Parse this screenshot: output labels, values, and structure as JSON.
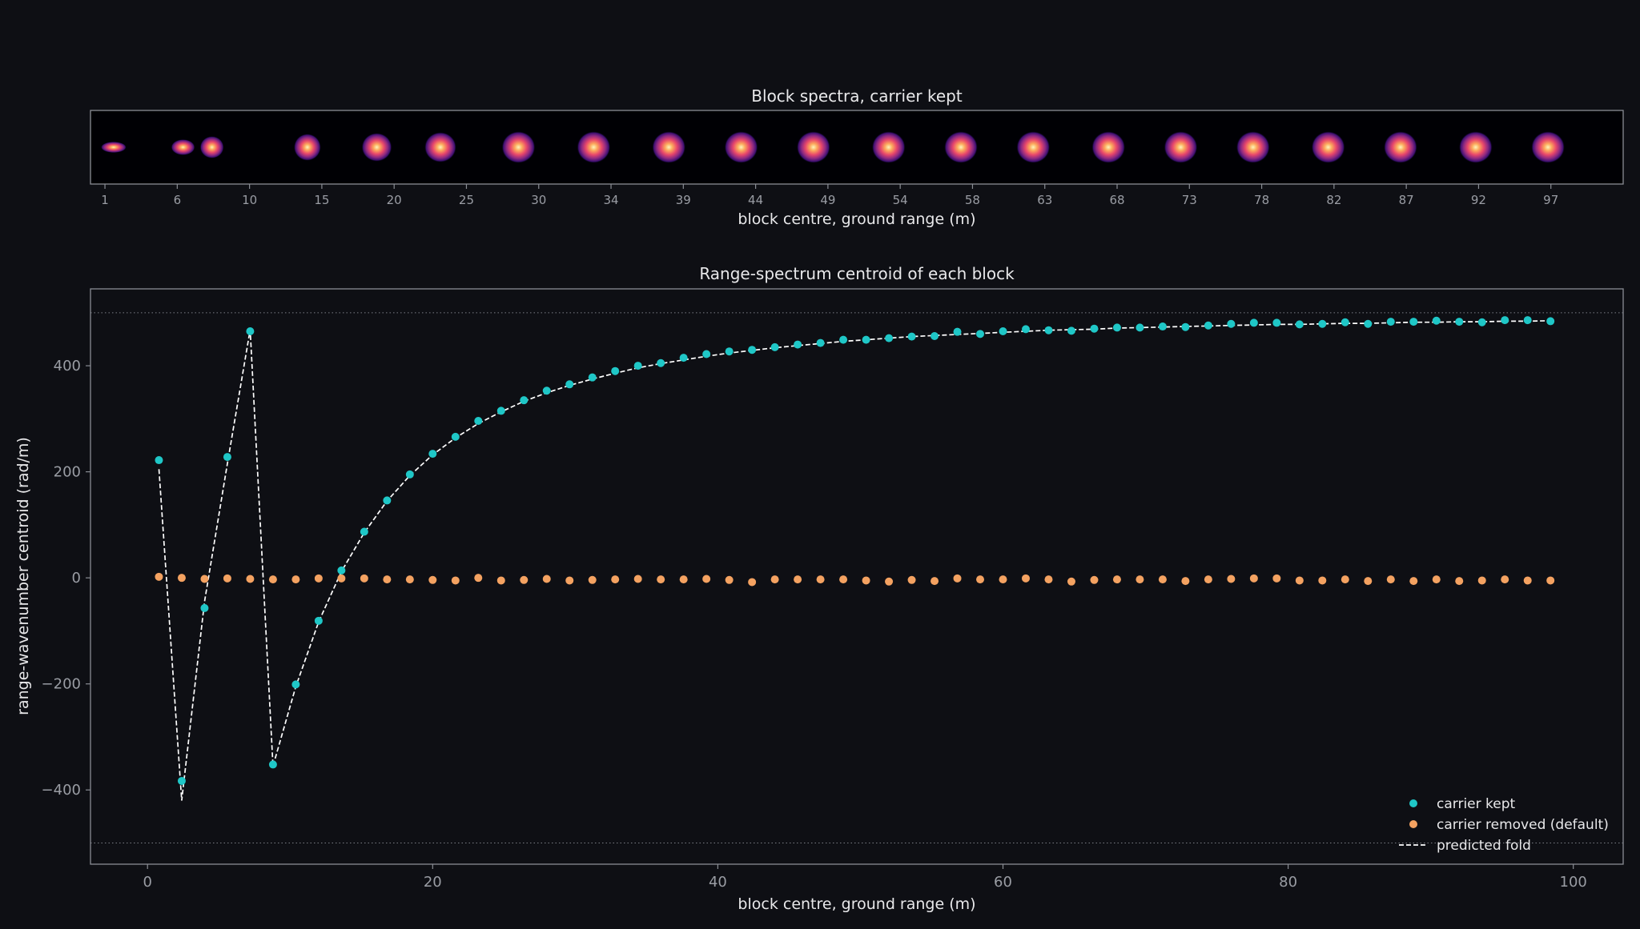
{
  "colors": {
    "background": "#0e0f14",
    "axes_frame": "#8a8d94",
    "tick_label": "#9a9da4",
    "text": "#e8e8ea",
    "carrier_kept": "#1fc7c7",
    "carrier_removed": "#f4a261",
    "predicted_fold": "#ffffff",
    "limit_line": "#7c7f86"
  },
  "chart_data": [
    {
      "type": "heatmap",
      "title": "Block spectra, carrier kept",
      "xlabel": "block centre, ground range (m)",
      "ylabel": "",
      "tick_labels": [
        "1",
        "6",
        "10",
        "15",
        "20",
        "25",
        "30",
        "34",
        "39",
        "44",
        "49",
        "54",
        "58",
        "63",
        "68",
        "73",
        "78",
        "82",
        "87",
        "92",
        "97"
      ],
      "colormap": "magma",
      "blob_columns": [
        0.3,
        2.7,
        3.7,
        7.0,
        9.4,
        11.6,
        14.3,
        16.9,
        19.5,
        22.0,
        24.5,
        27.1,
        29.6,
        32.1,
        34.7,
        37.2,
        39.7,
        42.3,
        44.8,
        47.4,
        49.9
      ],
      "num_columns": 53
    },
    {
      "type": "scatter",
      "title": "Range-spectrum centroid of each block",
      "xlabel": "block centre, ground range (m)",
      "ylabel": "range-wavenumber centroid (rad/m)",
      "xlim": [
        -4,
        103.5
      ],
      "ylim": [
        -540,
        545
      ],
      "xticks": [
        0,
        20,
        40,
        60,
        80,
        100
      ],
      "yticks": [
        -400,
        -200,
        0,
        200,
        400
      ],
      "ytick_labels": [
        "−400",
        "−200",
        "0",
        "200",
        "400"
      ],
      "grid": false,
      "legend_position": "bottom-right",
      "reference_lines": [
        500,
        -500
      ],
      "x": [
        0.8,
        2.4,
        4.0,
        5.6,
        7.2,
        8.8,
        10.4,
        12.0,
        13.6,
        15.2,
        16.8,
        18.4,
        20.0,
        21.6,
        23.2,
        24.8,
        26.4,
        28.0,
        29.6,
        31.2,
        32.8,
        34.4,
        36.0,
        37.6,
        39.2,
        40.8,
        42.4,
        44.0,
        45.6,
        47.2,
        48.8,
        50.4,
        52.0,
        53.6,
        55.2,
        56.8,
        58.4,
        60.0,
        61.6,
        63.2,
        64.8,
        66.4,
        68.0,
        69.6,
        71.2,
        72.8,
        74.4,
        76.0,
        77.6,
        79.2,
        80.8,
        82.4,
        84.0,
        85.6,
        87.2,
        88.8,
        90.4,
        92.0,
        93.6,
        95.2,
        96.8,
        98.4
      ],
      "series": [
        {
          "name": "carrier kept",
          "marker": "dot",
          "values": [
            222,
            -383,
            -57,
            228,
            465,
            -352,
            -201,
            -81,
            14,
            87,
            146,
            195,
            234,
            266,
            296,
            315,
            335,
            353,
            365,
            378,
            390,
            400,
            405,
            415,
            422,
            427,
            430,
            435,
            440,
            443,
            449,
            449,
            452,
            455,
            456,
            464,
            460,
            465,
            469,
            467,
            466,
            470,
            472,
            472,
            474,
            473,
            476,
            479,
            481,
            481,
            478,
            479,
            482,
            479,
            483,
            483,
            485,
            483,
            482,
            486,
            486,
            484
          ]
        },
        {
          "name": "carrier removed (default)",
          "marker": "dot",
          "values": [
            2,
            0,
            -2,
            -1,
            -2,
            -3,
            -3,
            -1,
            -1,
            -1,
            -3,
            -3,
            -4,
            -5,
            0,
            -5,
            -4,
            -2,
            -5,
            -4,
            -3,
            -2,
            -3,
            -3,
            -2,
            -4,
            -8,
            -3,
            -3,
            -3,
            -3,
            -5,
            -7,
            -4,
            -6,
            -1,
            -3,
            -3,
            -1,
            -3,
            -7,
            -4,
            -3,
            -3,
            -3,
            -6,
            -3,
            -2,
            -1,
            -1,
            -5,
            -5,
            -3,
            -6,
            -3,
            -6,
            -3,
            -6,
            -5,
            -3,
            -5,
            -5
          ]
        },
        {
          "name": "predicted fold",
          "style": "dashed-line",
          "values": [
            205,
            -420,
            -45,
            215,
            468,
            -355,
            -205,
            -83,
            12,
            85,
            145,
            193,
            232,
            264,
            291,
            313,
            333,
            349,
            363,
            375,
            386,
            396,
            404,
            411,
            418,
            424,
            429,
            434,
            438,
            442,
            446,
            449,
            452,
            455,
            457,
            459,
            461,
            463,
            465,
            467,
            468,
            469,
            471,
            472,
            473,
            474,
            475,
            476,
            477,
            478,
            478,
            479,
            480,
            480,
            481,
            482,
            482,
            483,
            483,
            484,
            484,
            485
          ]
        }
      ]
    }
  ]
}
